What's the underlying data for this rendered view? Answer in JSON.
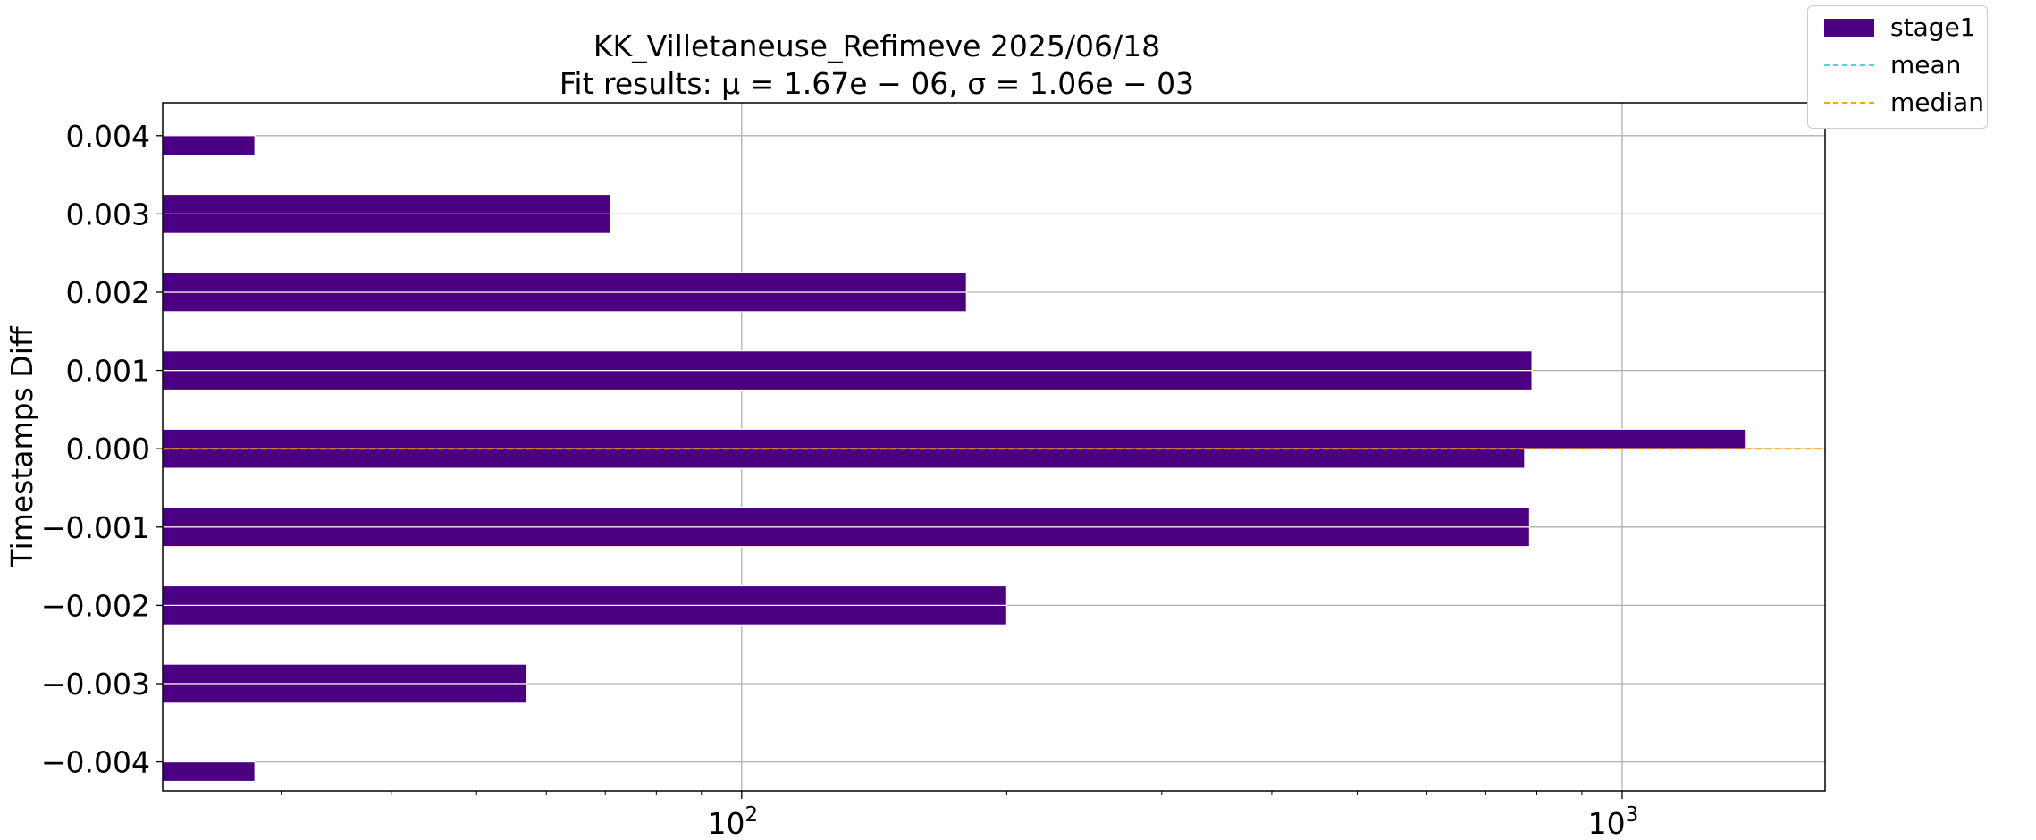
{
  "colors": {
    "stage1": "#4b0082",
    "mean": "#40e0d0",
    "median": "#ffa500",
    "grid": "#b0b0b0",
    "axis": "#000000",
    "divider": "#ffffff"
  },
  "chart_data": {
    "type": "bar",
    "orientation": "horizontal",
    "title": "KK_Villetaneuse_Refimeve 2025/06/18",
    "subtitle": "Fit results: μ = 1.67e − 06,  σ = 1.06e − 03",
    "xlabel": "",
    "ylabel": "Timestamps Diff",
    "x_scale": "log",
    "xlim": [
      22,
      1700
    ],
    "ylim": [
      -0.00437,
      0.00442
    ],
    "y_ticks": [
      {
        "value": 0.004,
        "label": "0.004"
      },
      {
        "value": 0.003,
        "label": "0.003"
      },
      {
        "value": 0.002,
        "label": "0.002"
      },
      {
        "value": 0.001,
        "label": "0.001"
      },
      {
        "value": 0.0,
        "label": "0.000"
      },
      {
        "value": -0.001,
        "label": "−0.001"
      },
      {
        "value": -0.002,
        "label": "−0.002"
      },
      {
        "value": -0.003,
        "label": "−0.003"
      },
      {
        "value": -0.004,
        "label": "−0.004"
      }
    ],
    "x_major_ticks": [
      {
        "value": 100,
        "base": "10",
        "exp": "2"
      },
      {
        "value": 1000,
        "base": "10",
        "exp": "3"
      }
    ],
    "x_minor_ticks": [
      30,
      40,
      50,
      60,
      70,
      80,
      90,
      200,
      300,
      400,
      500,
      600,
      700,
      800,
      900
    ],
    "grid": true,
    "bar_height": 0.00025,
    "series": [
      {
        "name": "stage1",
        "bars": [
          {
            "y_low": 0.00375,
            "y_high": 0.004,
            "value": 28
          },
          {
            "y_low": 0.00275,
            "y_high": 0.003,
            "value": 71
          },
          {
            "y_low": 0.003,
            "y_high": 0.00325,
            "value": 71
          },
          {
            "y_low": 0.00175,
            "y_high": 0.002,
            "value": 180
          },
          {
            "y_low": 0.002,
            "y_high": 0.00225,
            "value": 180
          },
          {
            "y_low": 0.00075,
            "y_high": 0.001,
            "value": 790
          },
          {
            "y_low": 0.001,
            "y_high": 0.00125,
            "value": 790
          },
          {
            "y_low": -0.00025,
            "y_high": 0.0,
            "value": 775
          },
          {
            "y_low": 0.0,
            "y_high": 0.00025,
            "value": 1380
          },
          {
            "y_low": -0.00125,
            "y_high": -0.001,
            "value": 785
          },
          {
            "y_low": -0.001,
            "y_high": -0.00075,
            "value": 785
          },
          {
            "y_low": -0.00225,
            "y_high": -0.002,
            "value": 200
          },
          {
            "y_low": -0.002,
            "y_high": -0.00175,
            "value": 200
          },
          {
            "y_low": -0.003,
            "y_high": -0.00275,
            "value": 57
          },
          {
            "y_low": -0.00325,
            "y_high": -0.003,
            "value": 57
          },
          {
            "y_low": -0.00425,
            "y_high": -0.004,
            "value": 28
          }
        ]
      }
    ],
    "mean_line": {
      "name": "mean",
      "y": 1.67e-06
    },
    "median_line": {
      "name": "median",
      "y": 0.0
    },
    "legend": {
      "placement": "outside-top-right",
      "entries": [
        {
          "label": "stage1",
          "kind": "bar"
        },
        {
          "label": "mean",
          "kind": "dashed-line"
        },
        {
          "label": "median",
          "kind": "dashed-line"
        }
      ]
    }
  }
}
